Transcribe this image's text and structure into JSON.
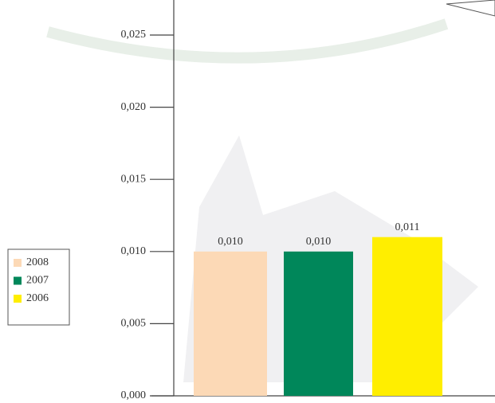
{
  "chart_data": {
    "type": "bar",
    "series": [
      {
        "name": "2008",
        "color": "#fcd9b6",
        "values": [
          0.01
        ],
        "value_labels": [
          "0,010"
        ]
      },
      {
        "name": "2007",
        "color": "#00875a",
        "values": [
          0.01
        ],
        "value_labels": [
          "0,010"
        ]
      },
      {
        "name": "2006",
        "color": "#ffee00",
        "values": [
          0.011
        ],
        "value_labels": [
          "0,011"
        ]
      }
    ],
    "ylim": [
      0,
      0.025
    ],
    "yticks": [
      {
        "value": 0,
        "label": "0,000"
      },
      {
        "value": 0.005,
        "label": "0,005"
      },
      {
        "value": 0.01,
        "label": "0,010"
      },
      {
        "value": 0.015,
        "label": "0,015"
      },
      {
        "value": 0.02,
        "label": "0,020"
      },
      {
        "value": 0.025,
        "label": "0,025"
      }
    ],
    "legend": "left"
  }
}
